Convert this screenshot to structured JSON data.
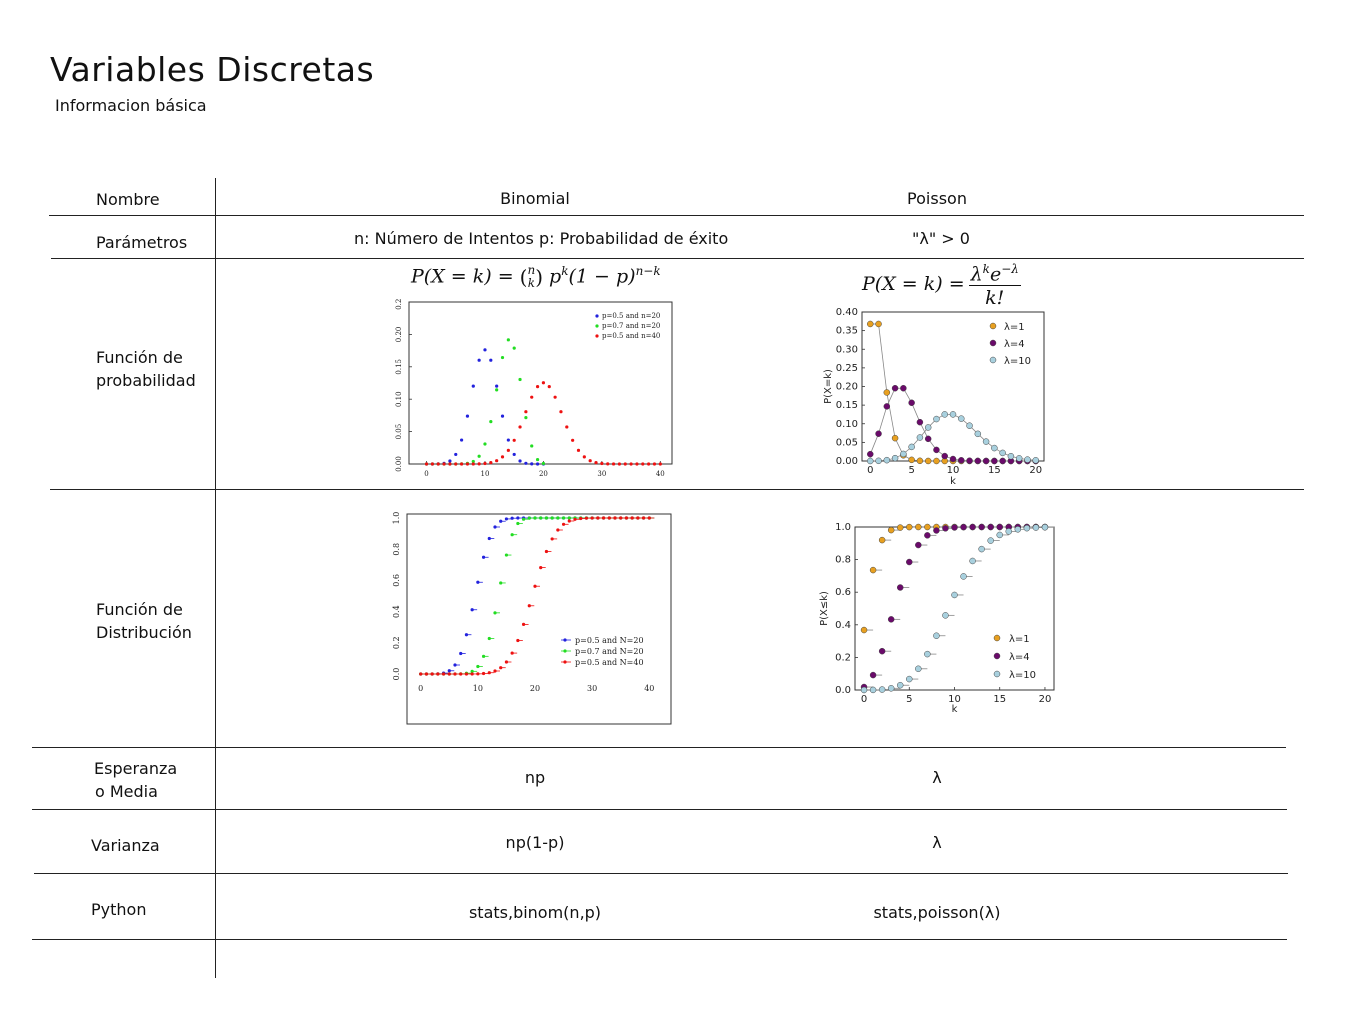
{
  "page": {
    "title": "Variables Discretas",
    "subtitle": "Informacion básica"
  },
  "rows": {
    "nombre": "Nombre",
    "parametros": "Parámetros",
    "funcion_prob_1": "Función de",
    "funcion_prob_2": "probabilidad",
    "funcion_dist_1": "Función de",
    "funcion_dist_2": "Distribución",
    "esperanza_1": "Esperanza",
    "esperanza_2": "o Media",
    "varianza": "Varianza",
    "python": "Python"
  },
  "binomial": {
    "name": "Binomial",
    "params": "n: Número de Intentos p: Probabilidad de éxito",
    "formula_left": "P(X = k) = ",
    "formula_binom_top": "n",
    "formula_binom_bottom": "k",
    "formula_right": " p",
    "formula_exp1": "k",
    "formula_mid": "(1 − p)",
    "formula_exp2": "n−k",
    "mean": "np",
    "variance": "np(1-p)",
    "python": "stats,binom(n,p)"
  },
  "poisson": {
    "name": "Poisson",
    "params": "\"λ\" > 0",
    "formula_left": "P(X = k) = ",
    "formula_num": "λ",
    "formula_num_exp1": "k",
    "formula_num_e": "e",
    "formula_num_exp2": "−λ",
    "formula_den": "k!",
    "mean": "λ",
    "variance": "λ",
    "python": "stats,poisson(λ)"
  },
  "chart_data": [
    {
      "type": "scatter",
      "title": "",
      "xlabel": "",
      "ylabel": "",
      "xlim": [
        -3,
        42
      ],
      "ylim": [
        0,
        0.25
      ],
      "xticks": [
        "0",
        "10",
        "20",
        "30",
        "40"
      ],
      "yticks": [
        "0.00",
        "0.05",
        "0.10",
        "0.15",
        "0.20",
        "0.25"
      ],
      "legend_position": "top-right",
      "series": [
        {
          "name": "p=0.5 and n=20",
          "color": "#2222dd",
          "dist": "binom",
          "n": 20,
          "p": 0.5
        },
        {
          "name": "p=0.7 and n=20",
          "color": "#22dd22",
          "dist": "binom",
          "n": 20,
          "p": 0.7
        },
        {
          "name": "p=0.5 and n=40",
          "color": "#ee1111",
          "dist": "binom",
          "n": 40,
          "p": 0.5
        }
      ]
    },
    {
      "type": "line",
      "title": "",
      "xlabel": "k",
      "ylabel": "P(X=k)",
      "xlim": [
        -1,
        21
      ],
      "ylim": [
        0,
        0.4
      ],
      "xticks": [
        "0",
        "5",
        "10",
        "15",
        "20"
      ],
      "yticks": [
        "0.00",
        "0.05",
        "0.10",
        "0.15",
        "0.20",
        "0.25",
        "0.30",
        "0.35",
        "0.40"
      ],
      "legend_position": "top-right",
      "series": [
        {
          "name": "λ=1",
          "color": "#e8a020",
          "dist": "poisson",
          "lambda": 1
        },
        {
          "name": "λ=4",
          "color": "#6a0a6a",
          "dist": "poisson",
          "lambda": 4
        },
        {
          "name": "λ=10",
          "color": "#a8d0de",
          "dist": "poisson",
          "lambda": 10
        }
      ]
    },
    {
      "type": "scatter",
      "title": "",
      "xlabel": "",
      "ylabel": "",
      "xlim": [
        -1,
        41
      ],
      "ylim": [
        0,
        1.0
      ],
      "xticks": [
        "0",
        "10",
        "20",
        "30",
        "40"
      ],
      "yticks": [
        "0.0",
        "0.2",
        "0.4",
        "0.6",
        "0.8",
        "1.0"
      ],
      "legend_position": "bottom-right",
      "series": [
        {
          "name": "p=0.5 and N=20",
          "color": "#2222dd",
          "dist": "binom",
          "n": 20,
          "p": 0.5
        },
        {
          "name": "p=0.7 and N=20",
          "color": "#22dd22",
          "dist": "binom",
          "n": 20,
          "p": 0.7
        },
        {
          "name": "p=0.5 and N=40",
          "color": "#ee1111",
          "dist": "binom",
          "n": 40,
          "p": 0.5
        }
      ]
    },
    {
      "type": "scatter",
      "title": "",
      "xlabel": "k",
      "ylabel": "P(X≤k)",
      "xlim": [
        -1,
        21
      ],
      "ylim": [
        0,
        1.0
      ],
      "xticks": [
        "0",
        "5",
        "10",
        "15",
        "20"
      ],
      "yticks": [
        "0.0",
        "0.2",
        "0.4",
        "0.6",
        "0.8",
        "1.0"
      ],
      "legend_position": "bottom-right",
      "series": [
        {
          "name": "λ=1",
          "color": "#e8a020",
          "dist": "poisson",
          "lambda": 1
        },
        {
          "name": "λ=4",
          "color": "#6a0a6a",
          "dist": "poisson",
          "lambda": 4
        },
        {
          "name": "λ=10",
          "color": "#a8d0de",
          "dist": "poisson",
          "lambda": 10
        }
      ]
    }
  ]
}
